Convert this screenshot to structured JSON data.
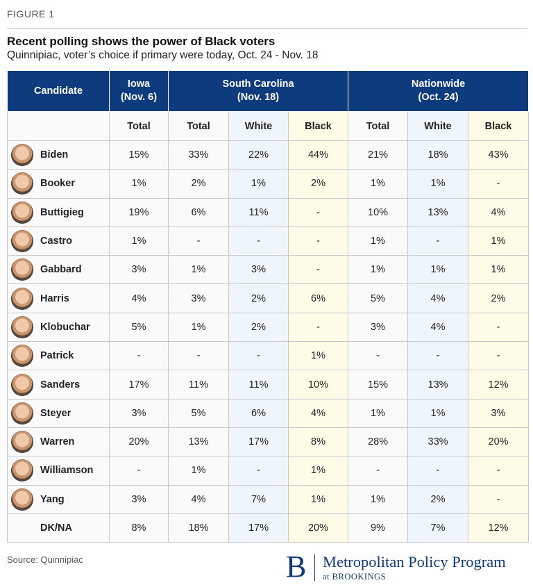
{
  "figure_label": "FIGURE 1",
  "title": "Recent polling shows the power of Black voters",
  "subtitle": "Quinnipiac, voter’s choice if primary were today, Oct. 24 - Nov. 18",
  "table": {
    "candidate_header": "Candidate",
    "groups": [
      {
        "line1": "Iowa",
        "line2": "(Nov. 6)"
      },
      {
        "line1": "South Carolina",
        "line2": "(Nov. 18)"
      },
      {
        "line1": "Nationwide",
        "line2": "(Oct. 24)"
      }
    ],
    "subheaders": [
      "Total",
      "Total",
      "White",
      "Black",
      "Total",
      "White",
      "Black"
    ],
    "rows": [
      {
        "name": "Biden",
        "values": [
          "15%",
          "33%",
          "22%",
          "44%",
          "21%",
          "18%",
          "43%"
        ]
      },
      {
        "name": "Booker",
        "values": [
          "1%",
          "2%",
          "1%",
          "2%",
          "1%",
          "1%",
          "-"
        ]
      },
      {
        "name": "Buttigieg",
        "values": [
          "19%",
          "6%",
          "11%",
          "-",
          "10%",
          "13%",
          "4%"
        ]
      },
      {
        "name": "Castro",
        "values": [
          "1%",
          "-",
          "-",
          "-",
          "1%",
          "-",
          "1%"
        ]
      },
      {
        "name": "Gabbard",
        "values": [
          "3%",
          "1%",
          "3%",
          "-",
          "1%",
          "1%",
          "1%"
        ]
      },
      {
        "name": "Harris",
        "values": [
          "4%",
          "3%",
          "2%",
          "6%",
          "5%",
          "4%",
          "2%"
        ]
      },
      {
        "name": "Klobuchar",
        "values": [
          "5%",
          "1%",
          "2%",
          "-",
          "3%",
          "4%",
          "-"
        ]
      },
      {
        "name": "Patrick",
        "values": [
          "-",
          "-",
          "-",
          "1%",
          "-",
          "-",
          "-"
        ]
      },
      {
        "name": "Sanders",
        "values": [
          "17%",
          "11%",
          "11%",
          "10%",
          "15%",
          "13%",
          "12%"
        ]
      },
      {
        "name": "Steyer",
        "values": [
          "3%",
          "5%",
          "6%",
          "4%",
          "1%",
          "1%",
          "3%"
        ]
      },
      {
        "name": "Warren",
        "values": [
          "20%",
          "13%",
          "17%",
          "8%",
          "28%",
          "33%",
          "20%"
        ]
      },
      {
        "name": "Williamson",
        "values": [
          "-",
          "1%",
          "-",
          "1%",
          "-",
          "-",
          "-"
        ]
      },
      {
        "name": "Yang",
        "values": [
          "3%",
          "4%",
          "7%",
          "1%",
          "1%",
          "2%",
          "-"
        ]
      },
      {
        "name": "DK/NA",
        "values": [
          "8%",
          "18%",
          "17%",
          "20%",
          "9%",
          "7%",
          "12%"
        ]
      }
    ]
  },
  "source": "Source: Quinnipiac",
  "logo": {
    "mark": "B",
    "name": "Metropolitan Policy Program",
    "sub": "at BROOKINGS"
  },
  "colors": {
    "header_blue": "#0e3b7e",
    "white_col": "#eef5fb",
    "black_col": "#fefbe6"
  }
}
